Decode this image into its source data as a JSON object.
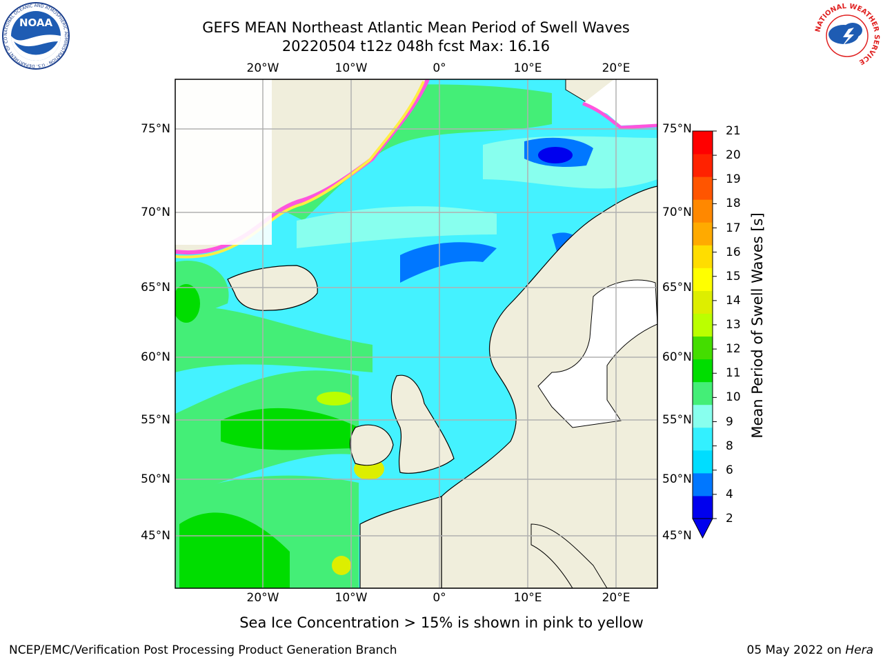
{
  "title": {
    "line1": "GEFS MEAN Northeast Atlantic Mean Period of Swell Waves",
    "line2": "20220504 t12z 048h fcst   Max: 16.16"
  },
  "map": {
    "lon_labels": [
      "20°W",
      "10°W",
      "0°",
      "10°E",
      "20°E"
    ],
    "lat_labels": [
      "75°N",
      "70°N",
      "65°N",
      "60°N",
      "55°N",
      "50°N",
      "45°N"
    ],
    "colors": {
      "land": "#f0eedc",
      "coast": "#000000",
      "grid": "#b0b0b0",
      "ice_pink": "#ff55dd",
      "ice_yellow": "#ffee44"
    },
    "regions": [
      "Greenland",
      "Iceland",
      "British Isles",
      "Scandinavia",
      "Iberia",
      "Western Europe",
      "Italy",
      "Svalbard"
    ]
  },
  "colorbar": {
    "label": "Mean Period of Swell Waves [s]",
    "ticks": [
      "21",
      "20",
      "19",
      "18",
      "17",
      "16",
      "15",
      "14",
      "13",
      "12",
      "11",
      "10",
      "9",
      "8",
      "6",
      "4",
      "2"
    ],
    "colors": [
      "#0000ee",
      "#0077ff",
      "#00ddff",
      "#33f0ff",
      "#88ffee",
      "#44ee77",
      "#00dd00",
      "#44dd00",
      "#bbff00",
      "#ddee00",
      "#ffff00",
      "#ffdd00",
      "#ffaa00",
      "#ff8800",
      "#ff5500",
      "#ff2200",
      "#ff0000"
    ]
  },
  "footnote": "Sea Ice Concentration > 15% is shown in pink to yellow",
  "credit": "NCEP/EMC/Verification Post Processing Product Generation Branch",
  "date": {
    "text": "05 May 2022 on",
    "host": "Hera"
  },
  "logos": {
    "noaa": "NOAA",
    "noaa_ring": "NATIONAL OCEANIC AND ATMOSPHERIC ADMINISTRATION · U.S. DEPARTMENT OF COMMERCE ·",
    "nws_ring": "NATIONAL WEATHER SERVICE"
  }
}
